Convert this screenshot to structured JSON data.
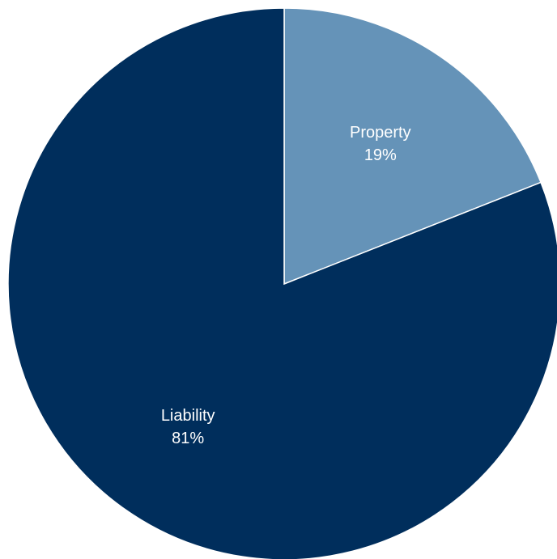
{
  "chart_data": {
    "type": "pie",
    "title": "",
    "start_angle_deg": 0,
    "direction": "clockwise",
    "legend": "none",
    "slices": [
      {
        "label": "Property",
        "value": 19,
        "value_label": "19%",
        "color": "#6593b8"
      },
      {
        "label": "Liability",
        "value": 81,
        "value_label": "81%",
        "color": "#002e5c"
      }
    ]
  }
}
